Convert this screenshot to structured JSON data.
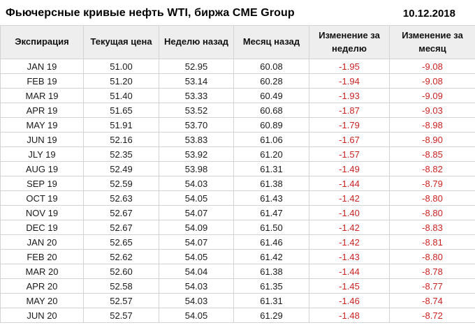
{
  "header": {
    "title": "Фьючерсные кривые нефть WTI, биржа CME Group",
    "date": "10.12.2018"
  },
  "colors": {
    "negative_value": "#cc2222",
    "header_background": "#eeeeee",
    "border": "#d3d3d3",
    "text": "#1a1a1a"
  },
  "chart_data": {
    "type": "table",
    "title": "Фьючерсные кривые нефть WTI, биржа CME Group",
    "date": "10.12.2018",
    "columns": [
      "Экспирация",
      "Текущая цена",
      "Неделю назад",
      "Месяц назад",
      "Изменение за неделю",
      "Изменение за месяц"
    ],
    "rows": [
      [
        "JAN 19",
        "51.00",
        "52.95",
        "60.08",
        "-1.95",
        "-9.08"
      ],
      [
        "FEB 19",
        "51.20",
        "53.14",
        "60.28",
        "-1.94",
        "-9.08"
      ],
      [
        "MAR 19",
        "51.40",
        "53.33",
        "60.49",
        "-1.93",
        "-9.09"
      ],
      [
        "APR 19",
        "51.65",
        "53.52",
        "60.68",
        "-1.87",
        "-9.03"
      ],
      [
        "MAY 19",
        "51.91",
        "53.70",
        "60.89",
        "-1.79",
        "-8.98"
      ],
      [
        "JUN 19",
        "52.16",
        "53.83",
        "61.06",
        "-1.67",
        "-8.90"
      ],
      [
        "JLY 19",
        "52.35",
        "53.92",
        "61.20",
        "-1.57",
        "-8.85"
      ],
      [
        "AUG 19",
        "52.49",
        "53.98",
        "61.31",
        "-1.49",
        "-8.82"
      ],
      [
        "SEP 19",
        "52.59",
        "54.03",
        "61.38",
        "-1.44",
        "-8.79"
      ],
      [
        "OCT 19",
        "52.63",
        "54.05",
        "61.43",
        "-1.42",
        "-8.80"
      ],
      [
        "NOV 19",
        "52.67",
        "54.07",
        "61.47",
        "-1.40",
        "-8.80"
      ],
      [
        "DEC 19",
        "52.67",
        "54.09",
        "61.50",
        "-1.42",
        "-8.83"
      ],
      [
        "JAN 20",
        "52.65",
        "54.07",
        "61.46",
        "-1.42",
        "-8.81"
      ],
      [
        "FEB 20",
        "52.62",
        "54.05",
        "61.42",
        "-1.43",
        "-8.80"
      ],
      [
        "MAR 20",
        "52.60",
        "54.04",
        "61.38",
        "-1.44",
        "-8.78"
      ],
      [
        "APR 20",
        "52.58",
        "54.03",
        "61.35",
        "-1.45",
        "-8.77"
      ],
      [
        "MAY 20",
        "52.57",
        "54.03",
        "61.31",
        "-1.46",
        "-8.74"
      ],
      [
        "JUN 20",
        "52.57",
        "54.05",
        "61.29",
        "-1.48",
        "-8.72"
      ]
    ]
  }
}
